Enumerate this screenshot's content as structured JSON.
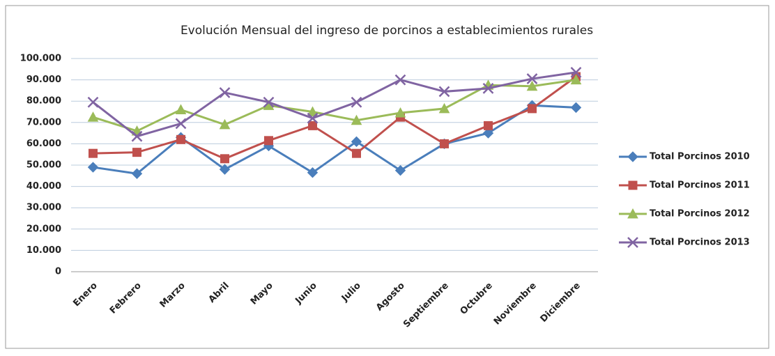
{
  "chart_data": {
    "type": "line",
    "title": "Evolución  Mensual del ingreso de porcinos  a establecimientos rurales",
    "categories": [
      "Enero",
      "Febrero",
      "Marzo",
      "Abril",
      "Mayo",
      "Junio",
      "Julio",
      "Agosto",
      "Septiembre",
      "Octubre",
      "Noviembre",
      "Diciembre"
    ],
    "series": [
      {
        "name": "Total Porcinos 2010",
        "color": "#4a7ebb",
        "marker": "diamond",
        "values": [
          49000,
          46000,
          63000,
          48000,
          59000,
          46500,
          61000,
          47500,
          60000,
          65000,
          78000,
          77000
        ]
      },
      {
        "name": "Total Porcinos 2011",
        "color": "#c0504d",
        "marker": "square",
        "values": [
          55500,
          56000,
          62000,
          53000,
          61500,
          68500,
          55500,
          72500,
          60000,
          68500,
          76500,
          91500
        ]
      },
      {
        "name": "Total Porcinos 2012",
        "color": "#9bbb59",
        "marker": "triangle",
        "values": [
          72500,
          66000,
          76000,
          69000,
          78000,
          75000,
          71000,
          74500,
          76500,
          87500,
          87000,
          90000
        ]
      },
      {
        "name": "Total Porcinos 2013",
        "color": "#8064a2",
        "marker": "x",
        "values": [
          79500,
          63500,
          69500,
          84000,
          79500,
          72000,
          79500,
          90000,
          84500,
          86000,
          90500,
          93500
        ]
      }
    ],
    "ylim": [
      0,
      100000
    ],
    "yticks": [
      0,
      {
        "value": 10000,
        "label": "10.000"
      },
      {
        "value": 20000,
        "label": "20.000"
      },
      {
        "value": 30000,
        "label": "30.000"
      },
      {
        "value": 40000,
        "label": "40.000"
      },
      {
        "value": 50000,
        "label": "50.000"
      },
      {
        "value": 60000,
        "label": "60.000"
      },
      {
        "value": 70000,
        "label": "70.000"
      },
      {
        "value": 80000,
        "label": "80.000"
      },
      {
        "value": 90000,
        "label": "90.000"
      },
      {
        "value": 100000,
        "label": "100.000"
      }
    ],
    "grid": true,
    "legend": "right"
  }
}
